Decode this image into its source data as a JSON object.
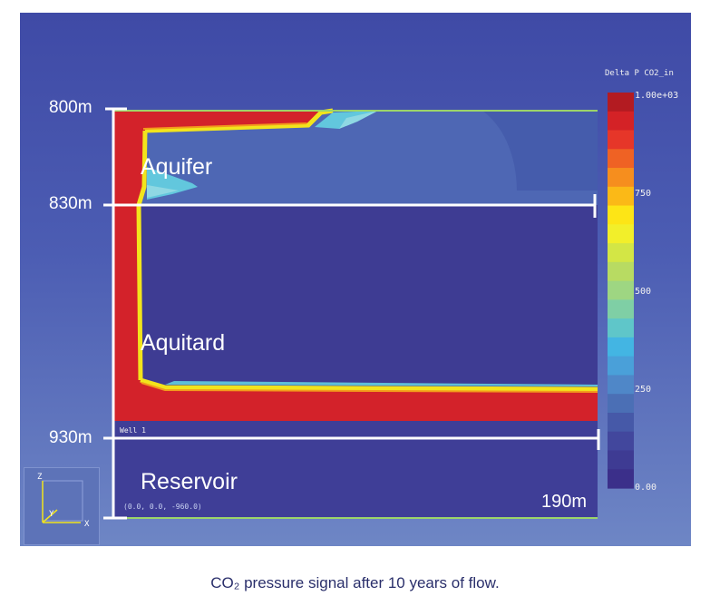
{
  "labels": {
    "depth_800": "800m",
    "depth_830": "830m",
    "depth_930": "930m",
    "aquifer": "Aquifer",
    "aquitard": "Aquitard",
    "reservoir": "Reservoir",
    "width": "190m",
    "well": "Well 1",
    "coords": "(0.0, 0.0, -960.0)"
  },
  "legend": {
    "title": "Delta P CO2_in",
    "ticks": [
      "1.00e+03",
      "750",
      "500",
      "250",
      "0.00"
    ],
    "colors": [
      "#b31b21",
      "#d42226",
      "#e63629",
      "#ef6224",
      "#f68e1e",
      "#fbb917",
      "#fde516",
      "#f2ef2a",
      "#d3e645",
      "#b8db62",
      "#9ed682",
      "#7fcfa5",
      "#5fc6c9",
      "#43b5e3",
      "#4aa0d9",
      "#4f87c8",
      "#4b6fb5",
      "#4659a8",
      "#42479d",
      "#3e3b93",
      "#3b2f8a"
    ]
  },
  "axes": {
    "z": "Z",
    "y": "Y",
    "x": "X"
  },
  "caption": "CO₂ pressure signal after 10 years of flow.",
  "colors": {
    "co2_high": "#d3222a",
    "aquifer_bg": "#4e67b4",
    "aquitard_bg": "#3e3c93",
    "plume_yellow": "#f2e41c",
    "plume_cyan": "#62c7dd"
  }
}
